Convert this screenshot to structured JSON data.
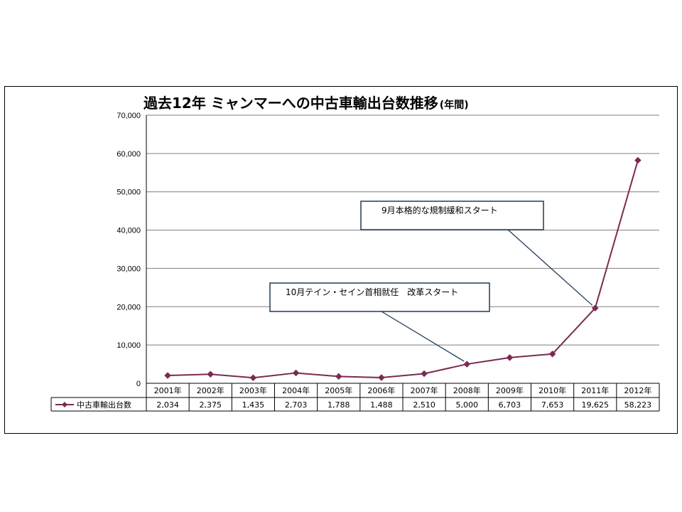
{
  "chart_data": {
    "type": "line",
    "title": "過去12年 ミャンマーへの中古車輸出台数推移",
    "title_suffix": "(年間)",
    "categories": [
      "2001年",
      "2002年",
      "2003年",
      "2004年",
      "2005年",
      "2006年",
      "2007年",
      "2008年",
      "2009年",
      "2010年",
      "2011年",
      "2012年"
    ],
    "series": [
      {
        "name": "中古車輸出台数",
        "values": [
          2034,
          2375,
          1435,
          2703,
          1788,
          1488,
          2510,
          5000,
          6703,
          7653,
          19625,
          58223
        ],
        "value_labels": [
          "2,034",
          "2,375",
          "1,435",
          "2,703",
          "1,788",
          "1,488",
          "2,510",
          "5,000",
          "6,703",
          "7,653",
          "19,625",
          "58,223"
        ],
        "color": "#7b2a52",
        "marker": "diamond"
      }
    ],
    "y_ticks": [
      "0",
      "10,000",
      "20,000",
      "30,000",
      "40,000",
      "50,000",
      "60,000",
      "70,000"
    ],
    "y_tick_values": [
      0,
      10000,
      20000,
      30000,
      40000,
      50000,
      60000,
      70000
    ],
    "ylim": [
      0,
      70000
    ],
    "grid": true,
    "data_table": true,
    "annotations": [
      {
        "text": "10月テイン・セイン首相就任　改革スタート",
        "target_category": "2008年"
      },
      {
        "text": "9月本格的な規制緩和スタート",
        "target_category": "2011年"
      }
    ],
    "colors": {
      "series": "#7b2a52",
      "grid": "#7f7f7f",
      "callout_border": "#1f3b5a",
      "callout_line": "#1f3b5a"
    }
  }
}
